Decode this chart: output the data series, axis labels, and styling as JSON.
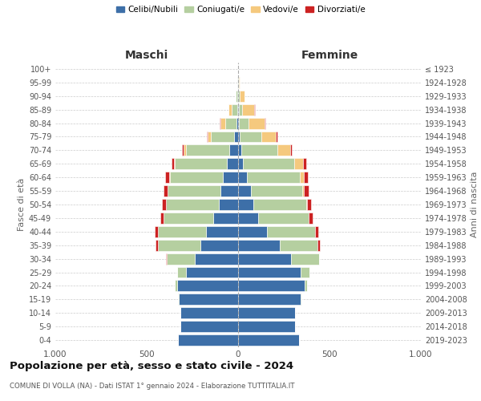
{
  "age_groups_display": [
    "0-4",
    "5-9",
    "10-14",
    "15-19",
    "20-24",
    "25-29",
    "30-34",
    "35-39",
    "40-44",
    "45-49",
    "50-54",
    "55-59",
    "60-64",
    "65-69",
    "70-74",
    "75-79",
    "80-84",
    "85-89",
    "90-94",
    "95-99",
    "100+"
  ],
  "birth_years_display": [
    "2019-2023",
    "2014-2018",
    "2009-2013",
    "2004-2008",
    "1999-2003",
    "1994-1998",
    "1989-1993",
    "1984-1988",
    "1979-1983",
    "1974-1978",
    "1969-1973",
    "1964-1968",
    "1959-1963",
    "1954-1958",
    "1949-1953",
    "1944-1948",
    "1939-1943",
    "1934-1938",
    "1929-1933",
    "1924-1928",
    "≤ 1923"
  ],
  "maschi": {
    "celibi": [
      330,
      315,
      315,
      325,
      335,
      285,
      235,
      205,
      175,
      135,
      105,
      95,
      85,
      60,
      50,
      20,
      10,
      5,
      3,
      1,
      0
    ],
    "coniugati": [
      0,
      0,
      1,
      4,
      13,
      48,
      155,
      235,
      265,
      275,
      290,
      290,
      290,
      285,
      235,
      130,
      60,
      28,
      8,
      3,
      1
    ],
    "vedovi": [
      0,
      0,
      0,
      0,
      0,
      0,
      0,
      0,
      0,
      0,
      1,
      2,
      4,
      8,
      13,
      18,
      28,
      18,
      4,
      0,
      0
    ],
    "divorziati": [
      0,
      0,
      0,
      0,
      0,
      1,
      4,
      10,
      18,
      17,
      20,
      22,
      20,
      12,
      9,
      4,
      5,
      1,
      0,
      0,
      0
    ]
  },
  "femmine": {
    "nubili": [
      332,
      312,
      312,
      342,
      362,
      342,
      288,
      228,
      158,
      108,
      83,
      68,
      48,
      28,
      18,
      10,
      5,
      3,
      2,
      1,
      0
    ],
    "coniugate": [
      0,
      0,
      0,
      3,
      13,
      48,
      153,
      208,
      262,
      278,
      288,
      282,
      288,
      278,
      198,
      118,
      52,
      18,
      8,
      3,
      1
    ],
    "vedove": [
      0,
      0,
      0,
      0,
      0,
      0,
      0,
      0,
      0,
      2,
      4,
      8,
      22,
      48,
      68,
      78,
      88,
      68,
      24,
      5,
      1
    ],
    "divorziate": [
      0,
      0,
      0,
      0,
      0,
      1,
      4,
      10,
      18,
      20,
      26,
      28,
      24,
      17,
      11,
      8,
      4,
      2,
      0,
      0,
      0
    ]
  },
  "colors": {
    "celibi": "#3d6fa8",
    "coniugati": "#b5cfa0",
    "vedovi": "#f5c97e",
    "divorziati": "#cc2222"
  },
  "xlim": 1000,
  "title": "Popolazione per età, sesso e stato civile - 2024",
  "subtitle": "COMUNE DI VOLLA (NA) - Dati ISTAT 1° gennaio 2024 - Elaborazione TUTTITALIA.IT",
  "ylabel_left": "Fasce di età",
  "ylabel_right": "Anni di nascita",
  "label_maschi": "Maschi",
  "label_femmine": "Femmine",
  "legend_labels": [
    "Celibi/Nubili",
    "Coniugati/e",
    "Vedovi/e",
    "Divorziati/e"
  ],
  "bg_color": "#ffffff",
  "grid_color": "#cccccc"
}
